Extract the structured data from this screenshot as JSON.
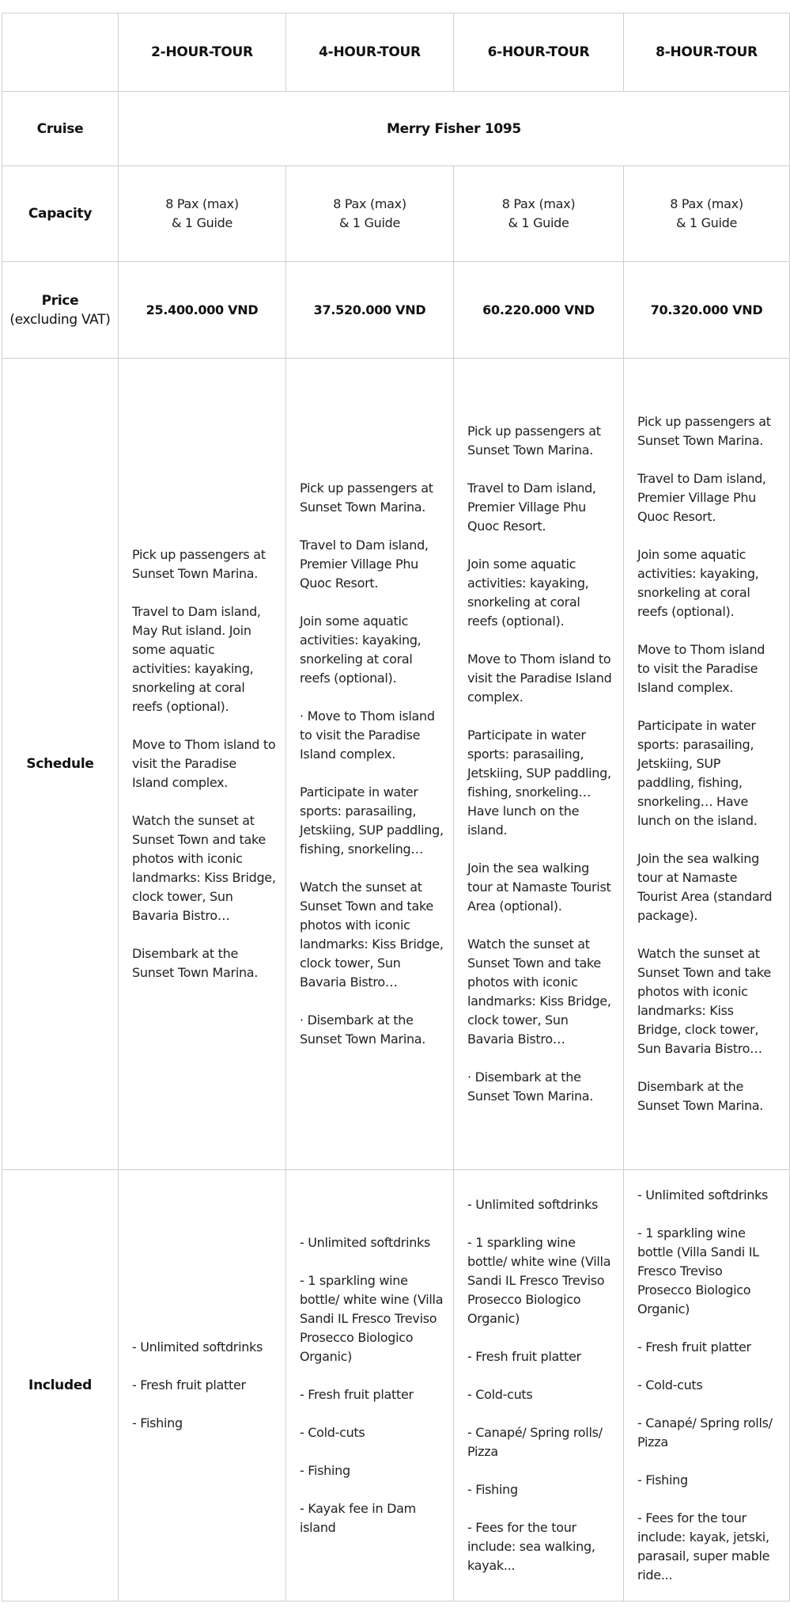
{
  "headers": [
    "",
    "2-HOUR-TOUR",
    "4-HOUR-TOUR",
    "6-HOUR-TOUR",
    "8-HOUR-TOUR"
  ],
  "cruise": {
    "label": "Cruise",
    "value": "Merry Fisher 1095"
  },
  "capacity": {
    "label": "Capacity",
    "values": [
      {
        "line1": "8 Pax (max)",
        "line2": "& 1 Guide"
      },
      {
        "line1": "8 Pax (max)",
        "line2": "& 1 Guide"
      },
      {
        "line1": "8 Pax (max)",
        "line2": "& 1 Guide"
      },
      {
        "line1": "8 Pax (max)",
        "line2": "& 1 Guide"
      }
    ]
  },
  "price": {
    "label": "Price",
    "sublabel": "(excluding VAT)",
    "values": [
      "25.400.000 VND",
      "37.520.000 VND",
      "60.220.000 VND",
      "70.320.000 VND"
    ]
  },
  "schedule": {
    "label": "Schedule",
    "columns": [
      [
        "Pick up passengers at Sunset Town Marina.",
        "Travel to Dam island, May Rut island. Join some aquatic activities: kayaking, snorkeling at coral reefs (optional).",
        "Move to Thom island to visit the Paradise Island complex.",
        "Watch the sunset at Sunset Town and take photos with iconic landmarks: Kiss Bridge, clock tower, Sun Bavaria Bistro…",
        "Disembark at the Sunset Town Marina."
      ],
      [
        "Pick up passengers at Sunset Town Marina.",
        "Travel to Dam island, Premier Village Phu Quoc Resort.",
        "Join some aquatic activities: kayaking, snorkeling at coral reefs (optional).",
        "· Move to Thom island to visit the Paradise Island complex.",
        "Participate in water sports: parasailing, Jetskiing, SUP paddling, fishing, snorkeling…",
        "Watch the sunset at Sunset Town and take photos with iconic landmarks: Kiss Bridge, clock tower, Sun Bavaria Bistro…",
        "· Disembark at the Sunset Town Marina."
      ],
      [
        "Pick up passengers at Sunset Town Marina.",
        "Travel to Dam island, Premier Village Phu Quoc Resort.",
        "Join some aquatic activities: kayaking, snorkeling at coral reefs (optional).",
        "Move to Thom island to visit the Paradise Island complex.",
        "Participate in water sports: parasailing, Jetskiing, SUP paddling, fishing, snorkeling… Have lunch on the island.",
        "Join the sea walking tour at Namaste Tourist Area (optional).",
        "Watch the sunset at Sunset Town and take photos with iconic landmarks: Kiss Bridge, clock tower, Sun Bavaria Bistro…",
        "· Disembark at the Sunset Town Marina."
      ],
      [
        "Pick up passengers at Sunset Town Marina.",
        "Travel to Dam island, Premier Village Phu Quoc Resort.",
        "Join some aquatic activities: kayaking, snorkeling at coral reefs (optional).",
        "Move to Thom island to visit the Paradise Island complex.",
        "Participate in water sports: parasailing, Jetskiing, SUP paddling, fishing, snorkeling… Have lunch on the island.",
        "Join the sea walking tour at Namaste Tourist Area (standard package).",
        "Watch the sunset at Sunset Town and take photos with iconic landmarks: Kiss Bridge, clock tower, Sun Bavaria Bistro…",
        "Disembark at the Sunset Town Marina."
      ]
    ]
  },
  "included": {
    "label": "Included",
    "columns": [
      [
        "- Unlimited softdrinks",
        "- Fresh fruit platter",
        "- Fishing"
      ],
      [
        "- Unlimited softdrinks",
        "- 1 sparkling wine bottle/ white wine (Villa Sandi IL Fresco Treviso Prosecco Biologico Organic)",
        "- Fresh fruit platter",
        "- Cold-cuts",
        "- Fishing",
        "- Kayak fee in Dam island"
      ],
      [
        "- Unlimited softdrinks",
        "- 1 sparkling wine bottle/ white wine (Villa Sandi IL Fresco Treviso Prosecco Biologico Organic)",
        "- Fresh fruit platter",
        "- Cold-cuts",
        "- Canapé/ Spring rolls/ Pizza",
        "- Fishing",
        "- Fees for the tour include: sea walking, kayak..."
      ],
      [
        "- Unlimited softdrinks",
        "- 1 sparkling wine bottle (Villa Sandi IL Fresco Treviso Prosecco Biologico Organic)",
        "- Fresh fruit platter",
        "- Cold-cuts",
        "- Canapé/ Spring rolls/ Pizza",
        "- Fishing",
        "- Fees for the tour include: kayak, jetski, parasail, super mable ride..."
      ]
    ]
  },
  "colors": {
    "border": "#cfcfcf",
    "text": "#222222"
  }
}
